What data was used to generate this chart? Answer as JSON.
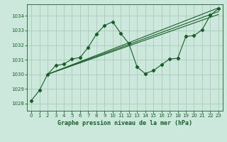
{
  "bg_color": "#cce8dc",
  "grid_color": "#aaccbb",
  "line_color": "#1a5c2a",
  "title": "Graphe pression niveau de la mer (hPa)",
  "xlim": [
    -0.5,
    23.5
  ],
  "ylim": [
    1027.5,
    1034.8
  ],
  "yticks": [
    1028,
    1029,
    1030,
    1031,
    1032,
    1033,
    1034
  ],
  "xticks": [
    0,
    1,
    2,
    3,
    4,
    5,
    6,
    7,
    8,
    9,
    10,
    11,
    12,
    13,
    14,
    15,
    16,
    17,
    18,
    19,
    20,
    21,
    22,
    23
  ],
  "series": [
    [
      0,
      1028.2
    ],
    [
      1,
      1028.9
    ],
    [
      2,
      1030.0
    ],
    [
      3,
      1030.6
    ],
    [
      4,
      1030.7
    ],
    [
      5,
      1031.05
    ],
    [
      6,
      1031.15
    ],
    [
      7,
      1031.85
    ],
    [
      8,
      1032.75
    ],
    [
      9,
      1033.35
    ],
    [
      10,
      1033.6
    ],
    [
      11,
      1032.8
    ],
    [
      12,
      1032.1
    ],
    [
      13,
      1030.5
    ],
    [
      14,
      1030.05
    ],
    [
      15,
      1030.25
    ],
    [
      16,
      1030.65
    ],
    [
      17,
      1031.05
    ],
    [
      18,
      1031.1
    ],
    [
      19,
      1032.6
    ],
    [
      20,
      1032.65
    ],
    [
      21,
      1033.05
    ],
    [
      22,
      1034.05
    ],
    [
      23,
      1034.5
    ]
  ],
  "trend_lines": [
    {
      "x": [
        2,
        23
      ],
      "y": [
        1030.0,
        1034.55
      ]
    },
    {
      "x": [
        2,
        23
      ],
      "y": [
        1030.0,
        1034.3
      ]
    },
    {
      "x": [
        2,
        23
      ],
      "y": [
        1030.0,
        1034.1
      ]
    }
  ]
}
